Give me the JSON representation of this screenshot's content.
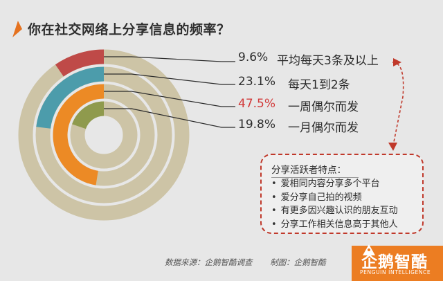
{
  "title": "你在社交网络上分享信息的频率？",
  "colors": {
    "background": "#e7e7e7",
    "track": "#cdc4a6",
    "red": "#bf4a48",
    "teal": "#4c9cab",
    "orange": "#ec8a25",
    "olive": "#8f9a4d",
    "accent": "#e5721f",
    "callout_border": "#c0392b",
    "logo_bg": "#ec7d22"
  },
  "chart_data": {
    "type": "radial-donut",
    "title": "你在社交网络上分享信息的频率？",
    "series": [
      {
        "value": 9.6,
        "value_label": "9.6%",
        "category": "平均每天3条及以上",
        "color": "#bf4a48"
      },
      {
        "value": 23.1,
        "value_label": "23.1%",
        "category": "每天1到2条",
        "color": "#4c9cab"
      },
      {
        "value": 47.5,
        "value_label": "47.5%",
        "category": "一周偶尔而发",
        "color": "#ec8a25",
        "highlight": true
      },
      {
        "value": 19.8,
        "value_label": "19.8%",
        "category": "一月偶尔而发",
        "color": "#8f9a4d"
      }
    ],
    "max": 100,
    "legend": "right"
  },
  "callout": {
    "heading": "分享活跃者特点：",
    "items": [
      "爱相同内容分享多个平台",
      "爱分享自己拍的视频",
      "有更多因兴趣认识的朋友互动",
      "分享工作相关信息高于其他人"
    ]
  },
  "footer": {
    "source": "数据来源：企鹅智酷调查",
    "author": "制图：企鹅智酷"
  },
  "logo": {
    "name": "企鹅智酷",
    "tagline": "PENGUIN INTELLIGENCE",
    "icon": "penguin-logo-icon"
  }
}
